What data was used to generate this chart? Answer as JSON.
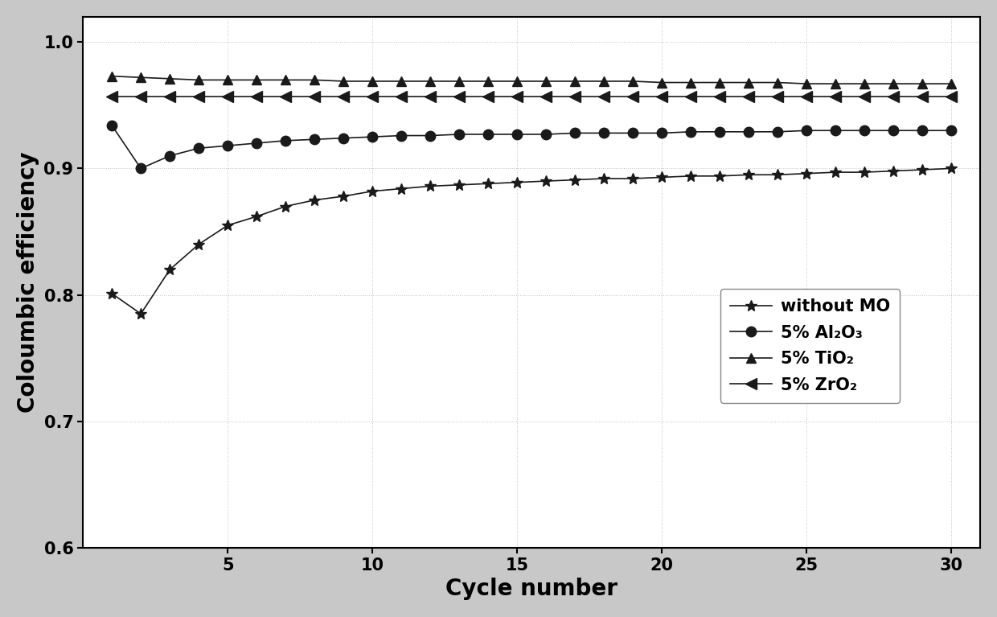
{
  "title": "",
  "xlabel": "Cycle number",
  "ylabel": "Coloumbic efficiency",
  "xlim": [
    0,
    31
  ],
  "ylim": [
    0.6,
    1.02
  ],
  "yticks": [
    0.6,
    0.7,
    0.8,
    0.9,
    1.0
  ],
  "xticks": [
    5,
    10,
    15,
    20,
    25,
    30
  ],
  "background_color": "#c8c8c8",
  "plot_bg_color": "#ffffff",
  "series": [
    {
      "label": "without MO",
      "marker": "*",
      "color": "#1a1a1a",
      "x": [
        1,
        2,
        3,
        4,
        5,
        6,
        7,
        8,
        9,
        10,
        11,
        12,
        13,
        14,
        15,
        16,
        17,
        18,
        19,
        20,
        21,
        22,
        23,
        24,
        25,
        26,
        27,
        28,
        29,
        30
      ],
      "y": [
        0.801,
        0.785,
        0.82,
        0.84,
        0.855,
        0.862,
        0.87,
        0.875,
        0.878,
        0.882,
        0.884,
        0.886,
        0.887,
        0.888,
        0.889,
        0.89,
        0.891,
        0.892,
        0.892,
        0.893,
        0.894,
        0.894,
        0.895,
        0.895,
        0.896,
        0.897,
        0.897,
        0.898,
        0.899,
        0.9
      ]
    },
    {
      "label": "5% Al₂O₃",
      "marker": "o",
      "color": "#1a1a1a",
      "x": [
        1,
        2,
        3,
        4,
        5,
        6,
        7,
        8,
        9,
        10,
        11,
        12,
        13,
        14,
        15,
        16,
        17,
        18,
        19,
        20,
        21,
        22,
        23,
        24,
        25,
        26,
        27,
        28,
        29,
        30
      ],
      "y": [
        0.934,
        0.9,
        0.91,
        0.916,
        0.918,
        0.92,
        0.922,
        0.923,
        0.924,
        0.925,
        0.926,
        0.926,
        0.927,
        0.927,
        0.927,
        0.927,
        0.928,
        0.928,
        0.928,
        0.928,
        0.929,
        0.929,
        0.929,
        0.929,
        0.93,
        0.93,
        0.93,
        0.93,
        0.93,
        0.93
      ]
    },
    {
      "label": "5% TiO₂",
      "marker": "^",
      "color": "#1a1a1a",
      "x": [
        1,
        2,
        3,
        4,
        5,
        6,
        7,
        8,
        9,
        10,
        11,
        12,
        13,
        14,
        15,
        16,
        17,
        18,
        19,
        20,
        21,
        22,
        23,
        24,
        25,
        26,
        27,
        28,
        29,
        30
      ],
      "y": [
        0.973,
        0.972,
        0.971,
        0.97,
        0.97,
        0.97,
        0.97,
        0.97,
        0.969,
        0.969,
        0.969,
        0.969,
        0.969,
        0.969,
        0.969,
        0.969,
        0.969,
        0.969,
        0.969,
        0.968,
        0.968,
        0.968,
        0.968,
        0.968,
        0.967,
        0.967,
        0.967,
        0.967,
        0.967,
        0.967
      ]
    },
    {
      "label": "5% ZrO₂",
      "marker": "<",
      "color": "#1a1a1a",
      "x": [
        1,
        2,
        3,
        4,
        5,
        6,
        7,
        8,
        9,
        10,
        11,
        12,
        13,
        14,
        15,
        16,
        17,
        18,
        19,
        20,
        21,
        22,
        23,
        24,
        25,
        26,
        27,
        28,
        29,
        30
      ],
      "y": [
        0.957,
        0.957,
        0.957,
        0.957,
        0.957,
        0.957,
        0.957,
        0.957,
        0.957,
        0.957,
        0.957,
        0.957,
        0.957,
        0.957,
        0.957,
        0.957,
        0.957,
        0.957,
        0.957,
        0.957,
        0.957,
        0.957,
        0.957,
        0.957,
        0.957,
        0.957,
        0.957,
        0.957,
        0.957,
        0.957
      ]
    }
  ],
  "font_size": 15,
  "tick_font_size": 15,
  "label_font_size": 20,
  "marker_sizes": {
    "*": 10,
    "o": 9,
    "^": 9,
    "<": 10
  },
  "line_width": 1.2
}
